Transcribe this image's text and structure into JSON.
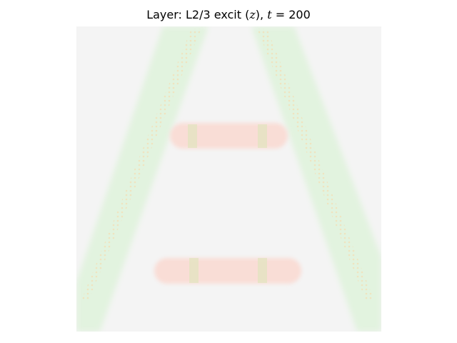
{
  "title": {
    "prefix": "Layer: L2/3 excit (",
    "var1": "z",
    "middle": "), ",
    "var2": "t",
    "suffix": " = 200"
  },
  "chart_data": {
    "type": "heatmap",
    "title": "Layer: L2/3 excit (z), t = 200",
    "layer": "L2/3 excit",
    "variable": "z",
    "time": 200,
    "axes_visible": false,
    "colorbar": false,
    "colors": {
      "background": "#f4f4f4",
      "diagonal_band": "#e2f3df",
      "diagonal_band_hatch": "#f0e6c4",
      "horizontal_bar": "#f9ddd6",
      "junction": "#e8e6c6"
    },
    "structures": [
      {
        "name": "left-diagonal-stroke",
        "kind": "band",
        "value_level": "green"
      },
      {
        "name": "right-diagonal-stroke",
        "kind": "band",
        "value_level": "green"
      },
      {
        "name": "upper-crossbar",
        "kind": "bar",
        "value_level": "red"
      },
      {
        "name": "lower-crossbar",
        "kind": "bar",
        "value_level": "red"
      }
    ]
  }
}
